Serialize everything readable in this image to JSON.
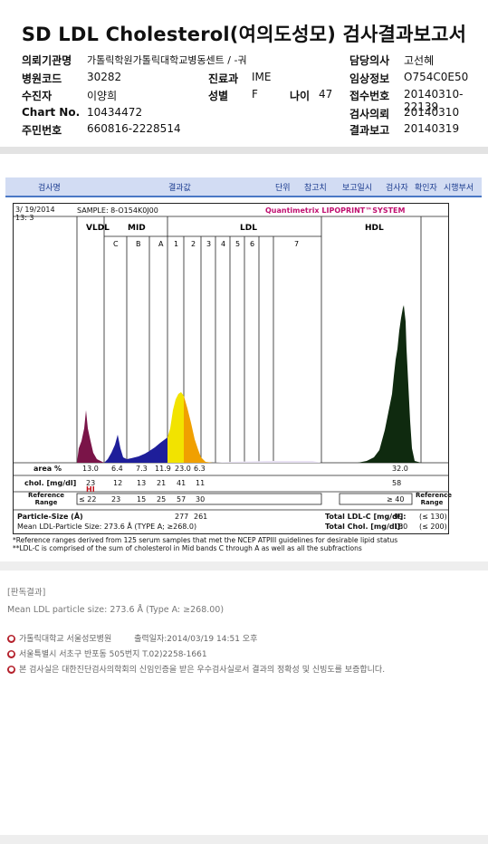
{
  "header": {
    "title": "SD LDL Cholesterol(여의도성모) 검사결과보고서"
  },
  "info": {
    "rows": [
      {
        "l1": "의뢰기관명",
        "v1": "가톨릭학원가톨릭대학교병동센트 / -궈",
        "l2": "",
        "v2": "",
        "l3": "담당의사",
        "v3": "고선혜"
      },
      {
        "l1": "병원코드",
        "v1": "30282",
        "l2": "진료과",
        "v2": "IME",
        "l3": "임상정보",
        "v3": "O754C0E50"
      },
      {
        "l1": "수진자",
        "v1": "이양희",
        "l2": "성별",
        "v2": "F",
        "l4": "나이",
        "v4": "47",
        "l3": "접수번호",
        "v3": "20140310-22139"
      },
      {
        "l1": "Chart No.",
        "v1": "10434472",
        "l2": "",
        "v2": "",
        "l3": "검사의뢰",
        "v3": "20140310"
      },
      {
        "l1": "주민번호",
        "v1": "660816-2228514",
        "l2": "",
        "v2": "",
        "l3": "결과보고",
        "v3": "20140319"
      }
    ]
  },
  "result_columns": [
    "검사명",
    "결과값",
    "단위",
    "참고치",
    "보고일시",
    "검사자",
    "확인자",
    "시행부서"
  ],
  "chart_data": {
    "type": "area",
    "date": "3/ 19/2014",
    "time": "13:  3",
    "sample": "SAMPLE:  8-O154K0J00",
    "brand": "Quantimetrix LIPOPRINT™SYSTEM",
    "groups": [
      "VLDL",
      "MID",
      "LDL",
      "HDL"
    ],
    "bands": [
      "C",
      "B",
      "A",
      "1",
      "2",
      "3",
      "4",
      "5",
      "6",
      "7"
    ],
    "area_percent": {
      "label": "area %",
      "values": [
        "13.0",
        "6.4",
        "7.3",
        "11.9",
        "23.0",
        "6.3"
      ],
      "hdl": "32.0"
    },
    "chol": {
      "label": "chol. [mg/dl]",
      "values": [
        "23",
        "12",
        "13",
        "21",
        "41",
        "11"
      ],
      "hi": "HI",
      "hdl": "58"
    },
    "reference": {
      "label": "Reference Range",
      "values": [
        "≤ 22",
        "23",
        "15",
        "25",
        "57",
        "30"
      ],
      "hdl": "≥ 40"
    },
    "particle_size": {
      "label": "Particle-Size (Å)",
      "values": [
        "277",
        "261"
      ]
    },
    "mean_ldl": "Mean LDL-Particle Size:  273.6 Å  (TYPE A;  ≥268.0)",
    "total_ldl": {
      "label": "Total LDL-C [mg/dl]:",
      "value": "99",
      "ref": "(≤ 130)"
    },
    "total_chol": {
      "label": "Total Chol. [mg/dl]:",
      "value": "180",
      "ref": "(≤ 200)"
    },
    "colors": {
      "vldl": "#7a1448",
      "mid": "#1e1e9a",
      "ldl1": "#f2e300",
      "ldl2": "#f0a000",
      "hdl": "#0f2a0f"
    }
  },
  "notes": [
    "*Reference ranges derived from 125 serum samples that met the NCEP ATPIII guidelines for desirable lipid status",
    "**LDL-C is comprised of the sum of cholesterol in Mid bands C through A as well as all the subfractions"
  ],
  "judgment": {
    "title": "[판독결과]",
    "text": "Mean LDL particle size: 273.6 Å (Type A: ≥268.00)"
  },
  "footer": {
    "line1_org": "가톨릭대학교 서울성모병원",
    "line1_print": "출력일자:2014/03/19 14:51 오후",
    "line2": "서울특별시 서초구 반포동 505번지 T.02)2258-1661",
    "line3": "본 검사실은 대한진단검사의학회의 신임인증을 받은 우수검사실로서 결과의 정확성 및 신빙도를 보증합니다."
  }
}
